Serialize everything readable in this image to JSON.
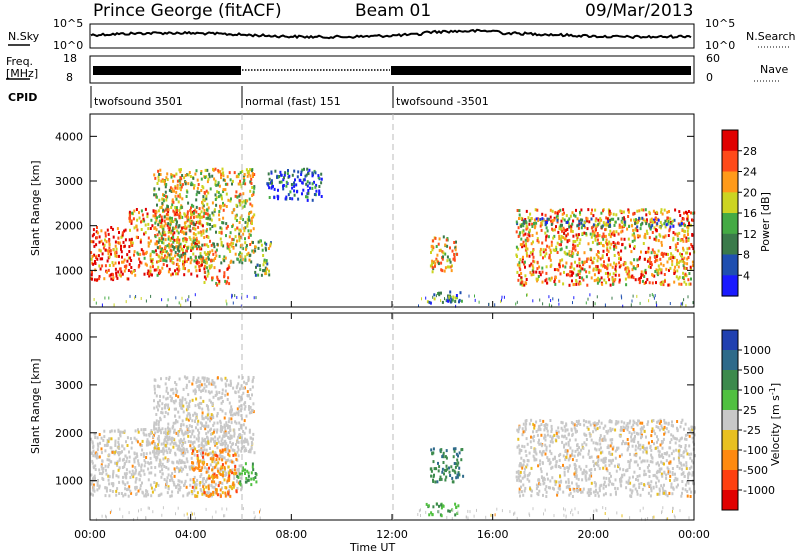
{
  "header": {
    "station": "Prince George (fitACF)",
    "beam": "Beam 01",
    "date": "09/Mar/2013"
  },
  "sky_panel": {
    "left_label": "N.Sky",
    "right_label": "N.Search",
    "left_ticks": [
      "10^5",
      "10^0"
    ],
    "right_ticks": [
      "10^5",
      "10^0"
    ]
  },
  "freq_panel": {
    "left_label_top": "Freq.",
    "left_label_unit": "[MHz]",
    "right_label": "Nave",
    "left_ticks": [
      "18",
      "8"
    ],
    "right_ticks": [
      "60",
      "0"
    ]
  },
  "cpid": {
    "label": "CPID",
    "segments": [
      {
        "name": "twofsound 3501",
        "start_h": 0,
        "end_h": 6
      },
      {
        "name": "normal (fast) 151",
        "start_h": 6,
        "end_h": 12
      },
      {
        "name": "twofsound -3501",
        "start_h": 12,
        "end_h": 24
      }
    ]
  },
  "x_axis": {
    "label": "Time UT",
    "ticks": [
      "00:00",
      "04:00",
      "08:00",
      "12:00",
      "16:00",
      "20:00",
      "00:00"
    ]
  },
  "chart_data": [
    {
      "type": "heatmap",
      "title": "Power [dB]",
      "ylabel": "Slant Range [km]",
      "xlim_hours": [
        0,
        24
      ],
      "ylim": [
        180,
        4500
      ],
      "y_ticks": [
        1000,
        2000,
        3000,
        4000
      ],
      "colorbar": {
        "label": "Power [dB]",
        "ticks": [
          "4",
          "8",
          "12",
          "16",
          "20",
          "24",
          "28"
        ],
        "colors": [
          "#1a1aff",
          "#1f4fb0",
          "#3a7a4a",
          "#44aa44",
          "#ccd422",
          "#ff9a1a",
          "#ff4a1a",
          "#e00000"
        ]
      },
      "echo_regions": [
        {
          "start_h": 0.0,
          "end_h": 1.5,
          "range_lo": 800,
          "range_hi": 2000,
          "level": 0.85
        },
        {
          "start_h": 1.5,
          "end_h": 4.5,
          "range_lo": 900,
          "range_hi": 2400,
          "level": 0.75
        },
        {
          "start_h": 2.5,
          "end_h": 6.5,
          "range_lo": 1200,
          "range_hi": 3300,
          "level": 0.55
        },
        {
          "start_h": 4.5,
          "end_h": 5.5,
          "range_lo": 700,
          "range_hi": 1200,
          "level": 0.7
        },
        {
          "start_h": 6.5,
          "end_h": 7.2,
          "range_lo": 900,
          "range_hi": 1700,
          "level": 0.4
        },
        {
          "start_h": 7.0,
          "end_h": 9.2,
          "range_lo": 2600,
          "range_hi": 3300,
          "level": 0.2
        },
        {
          "start_h": 13.5,
          "end_h": 14.6,
          "range_lo": 1000,
          "range_hi": 1800,
          "level": 0.6
        },
        {
          "start_h": 13.3,
          "end_h": 14.8,
          "range_lo": 300,
          "range_hi": 550,
          "level": 0.35
        },
        {
          "start_h": 16.9,
          "end_h": 24.0,
          "range_lo": 700,
          "range_hi": 2400,
          "level": 0.72
        },
        {
          "start_h": 16.9,
          "end_h": 23.5,
          "range_lo": 2000,
          "range_hi": 2200,
          "level": 0.3
        }
      ]
    },
    {
      "type": "heatmap",
      "title": "Velocity [m s^-1]",
      "ylabel": "Slant Range [km]",
      "xlim_hours": [
        0,
        24
      ],
      "ylim": [
        180,
        4500
      ],
      "y_ticks": [
        1000,
        2000,
        3000,
        4000
      ],
      "colorbar": {
        "label": "Velocity [m s",
        "label_sup": "-1",
        "label_end": "]",
        "ticks": [
          "1000",
          "500",
          "100",
          "25",
          "-25",
          "-100",
          "-500",
          "-1000"
        ],
        "colors": [
          "#2040b0",
          "#2e6a8a",
          "#3c8a4c",
          "#50c040",
          "#c8c8c8",
          "#e8c020",
          "#ff8a10",
          "#ff4010",
          "#e00000"
        ]
      },
      "echo_regions": [
        {
          "start_h": 0.0,
          "end_h": 6.0,
          "range_lo": 700,
          "range_hi": 2100,
          "class": "ground"
        },
        {
          "start_h": 2.5,
          "end_h": 6.5,
          "range_lo": 1600,
          "range_hi": 3200,
          "class": "ground"
        },
        {
          "start_h": 4.0,
          "end_h": 5.8,
          "range_lo": 700,
          "range_hi": 1700,
          "class": "negative"
        },
        {
          "start_h": 5.8,
          "end_h": 6.6,
          "range_lo": 900,
          "range_hi": 1400,
          "class": "positive"
        },
        {
          "start_h": 13.5,
          "end_h": 14.8,
          "range_lo": 1000,
          "range_hi": 1700,
          "class": "positive_strong"
        },
        {
          "start_h": 13.3,
          "end_h": 14.6,
          "range_lo": 300,
          "range_hi": 550,
          "class": "positive"
        },
        {
          "start_h": 16.9,
          "end_h": 24.0,
          "range_lo": 700,
          "range_hi": 2300,
          "class": "ground"
        }
      ]
    }
  ]
}
